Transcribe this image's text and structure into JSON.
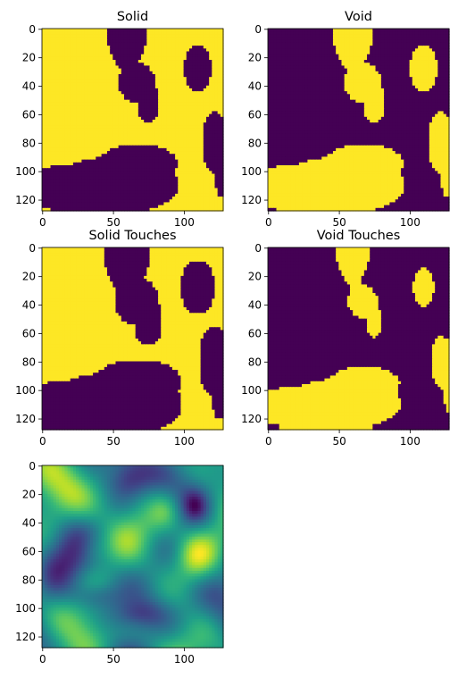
{
  "chart_data": [
    {
      "type": "heatmap",
      "title": "Solid",
      "map": "solid",
      "xticks": [
        0,
        50,
        100
      ],
      "yticks": [
        0,
        20,
        40,
        60,
        80,
        100,
        120
      ],
      "xlim": [
        0,
        128
      ],
      "ylim": [
        128,
        0
      ],
      "colormap": "viridis",
      "values_binary": [
        0,
        1
      ]
    },
    {
      "type": "heatmap",
      "title": "Void",
      "map": "void",
      "xticks": [
        0,
        50,
        100
      ],
      "yticks": [
        0,
        20,
        40,
        60,
        80,
        100,
        120
      ],
      "xlim": [
        0,
        128
      ],
      "ylim": [
        128,
        0
      ],
      "colormap": "viridis",
      "values_binary": [
        0,
        1
      ]
    },
    {
      "type": "heatmap",
      "title": "Solid Touches",
      "map": "solid_touches",
      "xticks": [
        0,
        50,
        100
      ],
      "yticks": [
        0,
        20,
        40,
        60,
        80,
        100,
        120
      ],
      "xlim": [
        0,
        128
      ],
      "ylim": [
        128,
        0
      ],
      "colormap": "viridis",
      "values_binary": [
        0,
        1
      ]
    },
    {
      "type": "heatmap",
      "title": "Void Touches",
      "map": "void_touches",
      "xticks": [
        0,
        50,
        100
      ],
      "yticks": [
        0,
        20,
        40,
        60,
        80,
        100,
        120
      ],
      "xlim": [
        0,
        128
      ],
      "ylim": [
        128,
        0
      ],
      "colormap": "viridis",
      "values_binary": [
        0,
        1
      ]
    },
    {
      "type": "heatmap",
      "title": "",
      "map": "field",
      "xticks": [
        0,
        50,
        100
      ],
      "yticks": [
        0,
        20,
        40,
        60,
        80,
        100,
        120
      ],
      "xlim": [
        0,
        128
      ],
      "ylim": [
        128,
        0
      ],
      "colormap": "viridis",
      "values_continuous": true
    }
  ],
  "colors": {
    "low": "#440154",
    "high": "#fde725",
    "viridis_stops": [
      "#440154",
      "#482878",
      "#3e4989",
      "#31688e",
      "#26828e",
      "#1f9e89",
      "#35b779",
      "#6ece58",
      "#b5de2b",
      "#fde725"
    ]
  }
}
